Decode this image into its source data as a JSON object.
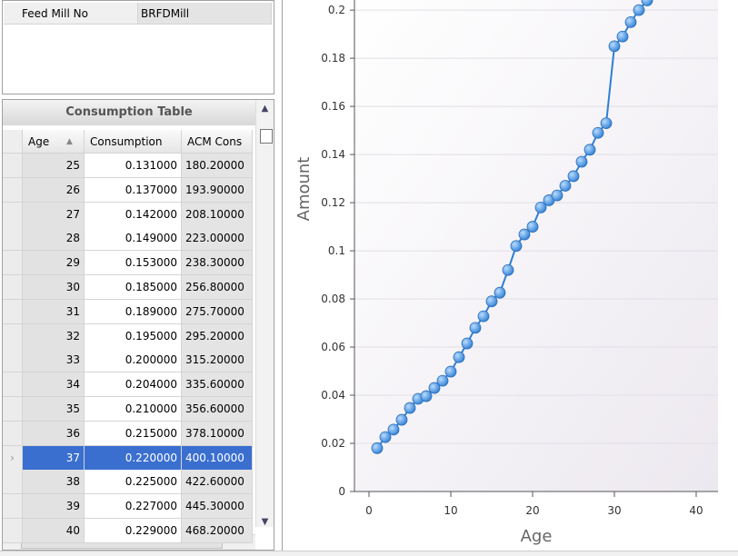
{
  "form": {
    "rows": [
      [
        "Feed Mill No",
        "BRFDMill"
      ]
    ]
  },
  "table": {
    "title": "Consumption Table",
    "columns": [
      "Age",
      "Consumption",
      "ACM Cons"
    ],
    "selected_row": 12,
    "rows": [
      [
        25,
        "0.131000",
        "180.20000"
      ],
      [
        26,
        "0.137000",
        "193.90000"
      ],
      [
        27,
        "0.142000",
        "208.10000"
      ],
      [
        28,
        "0.149000",
        "223.00000"
      ],
      [
        29,
        "0.153000",
        "238.30000"
      ],
      [
        30,
        "0.185000",
        "256.80000"
      ],
      [
        31,
        "0.189000",
        "275.70000"
      ],
      [
        32,
        "0.195000",
        "295.20000"
      ],
      [
        33,
        "0.200000",
        "315.20000"
      ],
      [
        34,
        "0.204000",
        "335.60000"
      ],
      [
        35,
        "0.210000",
        "356.60000"
      ],
      [
        36,
        "0.215000",
        "378.10000"
      ],
      [
        37,
        "0.220000",
        "400.10000"
      ],
      [
        38,
        "0.225000",
        "422.60000"
      ],
      [
        39,
        "0.227000",
        "445.30000"
      ],
      [
        40,
        "0.229000",
        "468.20000"
      ]
    ]
  },
  "chart": {
    "type": "line",
    "x_label": "Age",
    "y_label": "Amount",
    "color": "#2f7fd4",
    "x": [
      1,
      2,
      3,
      4,
      5,
      6,
      7,
      8,
      9,
      10,
      11,
      12,
      13,
      14,
      15,
      16,
      17,
      18,
      19,
      20,
      21,
      22,
      23,
      24,
      25,
      26,
      27,
      28,
      29,
      30,
      31,
      32,
      33,
      34
    ],
    "values": [
      0.018,
      0.0226,
      0.0257,
      0.0298,
      0.0347,
      0.0385,
      0.0396,
      0.043,
      0.046,
      0.0498,
      0.0558,
      0.0615,
      0.068,
      0.0728,
      0.079,
      0.0826,
      0.092,
      0.102,
      0.1068,
      0.11,
      0.118,
      0.121,
      0.123,
      0.127,
      0.131,
      0.137,
      0.142,
      0.149,
      0.153,
      0.185,
      0.189,
      0.195,
      0.2,
      0.204
    ],
    "xlim": [
      -1,
      42.5
    ],
    "ylim": [
      0,
      0.2042
    ],
    "xticks": [
      0,
      10,
      20,
      30,
      40
    ],
    "yticks": [
      0,
      0.02,
      0.04,
      0.06,
      0.08,
      0.1,
      0.12,
      0.14,
      0.16,
      0.18,
      0.2
    ],
    "grid": true
  }
}
